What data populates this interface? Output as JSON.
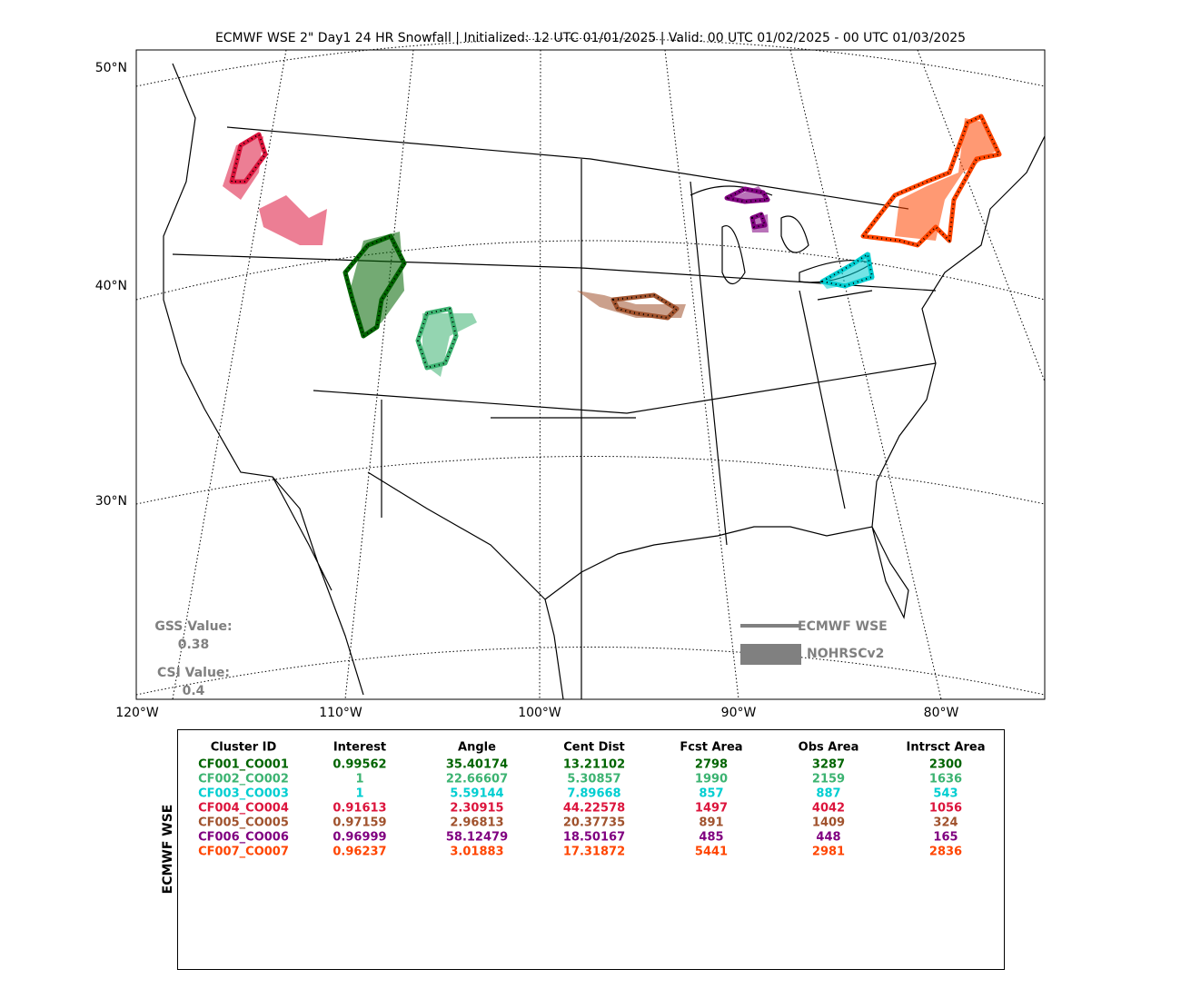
{
  "header": {
    "title": "ECMWF WSE 2\" Day1 24 HR Snowfall | Initialized: 12 UTC 01/01/2025 | Valid: 00 UTC 01/02/2025 - 00 UTC 01/03/2025"
  },
  "map": {
    "lat_labels": [
      "50°N",
      "40°N",
      "30°N"
    ],
    "lon_labels": [
      "120°W",
      "110°W",
      "100°W",
      "90°W",
      "80°W"
    ]
  },
  "scores": {
    "gss_label": "GSS Value:",
    "gss": 0.38,
    "csi_label": "CSI Value:",
    "csi": 0.4
  },
  "legend": {
    "forecast": "ECMWF WSE",
    "observed": "NOHRSCv2",
    "color": "#808080"
  },
  "table": {
    "side_label": "ECMWF WSE",
    "header": [
      "Cluster ID",
      "Interest",
      "Angle",
      "Cent Dist",
      "Fcst Area",
      "Obs Area",
      "Intrsct Area"
    ],
    "rows": [
      {
        "color": "#006400",
        "cells": [
          "CF001_CO001",
          0.99562,
          35.40174,
          13.21102,
          2798,
          3287,
          2300
        ]
      },
      {
        "color": "#3cb371",
        "cells": [
          "CF002_CO002",
          1,
          22.66607,
          5.30857,
          1990,
          2159,
          1636
        ]
      },
      {
        "color": "#00ced1",
        "cells": [
          "CF003_CO003",
          1,
          5.59144,
          7.89668,
          857,
          887,
          543
        ]
      },
      {
        "color": "#dc143c",
        "cells": [
          "CF004_CO004",
          0.91613,
          2.30915,
          44.22578,
          1497,
          4042,
          1056
        ]
      },
      {
        "color": "#a0522d",
        "cells": [
          "CF005_CO005",
          0.97159,
          2.96813,
          20.37735,
          891,
          1409,
          324
        ]
      },
      {
        "color": "#800080",
        "cells": [
          "CF006_CO006",
          0.96999,
          58.12479,
          18.50167,
          485,
          448,
          165
        ]
      },
      {
        "color": "#ff4500",
        "cells": [
          "CF007_CO007",
          0.96237,
          3.01883,
          17.31872,
          5441,
          2981,
          2836
        ]
      }
    ]
  }
}
